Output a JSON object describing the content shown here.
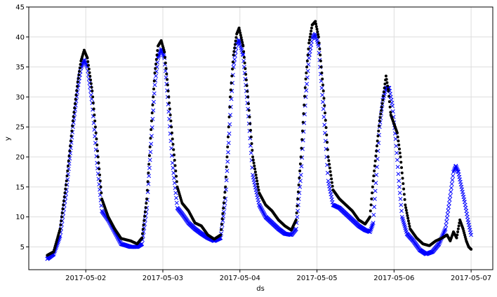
{
  "chart_data": {
    "type": "scatter",
    "xlabel": "ds",
    "ylabel": "y",
    "x_ticks": [
      "2017-05-02",
      "2017-05-03",
      "2017-05-04",
      "2017-05-05",
      "2017-05-06",
      "2017-05-07"
    ],
    "y_ticks": [
      5,
      10,
      15,
      20,
      25,
      30,
      35,
      40,
      45
    ],
    "xlim": [
      "2017-05-01T06:15",
      "2017-05-07T06:45"
    ],
    "ylim": [
      1.2,
      45
    ],
    "grid": true,
    "colors": {
      "actual": "#000000",
      "forecast": "#0000ff"
    },
    "series": [
      {
        "marker": "dot",
        "color": "#000000",
        "points": [
          [
            "2017-05-01T12:00",
            3.6
          ],
          [
            "2017-05-01T14:00",
            4.2
          ],
          [
            "2017-05-01T16:00",
            8.0
          ],
          [
            "2017-05-01T18:00",
            16.0
          ],
          [
            "2017-05-01T20:00",
            26.0
          ],
          [
            "2017-05-01T21:30",
            32.5
          ],
          [
            "2017-05-01T22:30",
            36.0
          ],
          [
            "2017-05-01T23:30",
            37.8
          ],
          [
            "2017-05-02T00:30",
            36.5
          ],
          [
            "2017-05-02T02:00",
            31.0
          ],
          [
            "2017-05-02T03:30",
            22.0
          ],
          [
            "2017-05-02T05:00",
            13.0
          ],
          [
            "2017-05-02T07:00",
            10.0
          ],
          [
            "2017-05-02T09:00",
            8.0
          ],
          [
            "2017-05-02T11:00",
            6.4
          ],
          [
            "2017-05-02T14:00",
            6.0
          ],
          [
            "2017-05-02T16:00",
            5.5
          ],
          [
            "2017-05-02T17:30",
            6.5
          ],
          [
            "2017-05-02T19:00",
            13.0
          ],
          [
            "2017-05-02T20:30",
            26.0
          ],
          [
            "2017-05-02T21:30",
            34.0
          ],
          [
            "2017-05-02T22:30",
            38.5
          ],
          [
            "2017-05-02T23:30",
            39.4
          ],
          [
            "2017-05-03T00:30",
            37.5
          ],
          [
            "2017-05-03T01:30",
            32.0
          ],
          [
            "2017-05-03T03:00",
            23.0
          ],
          [
            "2017-05-03T04:30",
            15.0
          ],
          [
            "2017-05-03T06:00",
            12.3
          ],
          [
            "2017-05-03T08:00",
            11.0
          ],
          [
            "2017-05-03T10:00",
            9.0
          ],
          [
            "2017-05-03T12:00",
            8.5
          ],
          [
            "2017-05-03T14:00",
            7.0
          ],
          [
            "2017-05-03T16:00",
            6.3
          ],
          [
            "2017-05-03T18:00",
            7.0
          ],
          [
            "2017-05-03T19:30",
            15.0
          ],
          [
            "2017-05-03T21:00",
            30.0
          ],
          [
            "2017-05-03T22:00",
            37.0
          ],
          [
            "2017-05-03T23:00",
            40.5
          ],
          [
            "2017-05-03T23:45",
            41.5
          ],
          [
            "2017-05-04T01:00",
            38.5
          ],
          [
            "2017-05-04T02:30",
            30.0
          ],
          [
            "2017-05-04T04:00",
            20.0
          ],
          [
            "2017-05-04T06:00",
            14.0
          ],
          [
            "2017-05-04T08:00",
            12.0
          ],
          [
            "2017-05-04T10:00",
            11.0
          ],
          [
            "2017-05-04T12:00",
            9.5
          ],
          [
            "2017-05-04T14:00",
            8.5
          ],
          [
            "2017-05-04T16:00",
            7.8
          ],
          [
            "2017-05-04T17:30",
            9.5
          ],
          [
            "2017-05-04T19:00",
            20.0
          ],
          [
            "2017-05-04T20:30",
            33.0
          ],
          [
            "2017-05-04T21:30",
            39.0
          ],
          [
            "2017-05-04T22:30",
            42.0
          ],
          [
            "2017-05-04T23:30",
            42.6
          ],
          [
            "2017-05-05T00:30",
            40.0
          ],
          [
            "2017-05-05T02:00",
            31.0
          ],
          [
            "2017-05-05T03:30",
            20.0
          ],
          [
            "2017-05-05T05:00",
            14.5
          ],
          [
            "2017-05-05T07:00",
            13.0
          ],
          [
            "2017-05-05T09:00",
            12.0
          ],
          [
            "2017-05-05T11:00",
            11.0
          ],
          [
            "2017-05-05T13:00",
            9.5
          ],
          [
            "2017-05-05T15:00",
            8.8
          ],
          [
            "2017-05-05T16:30",
            10.0
          ],
          [
            "2017-05-05T17:30",
            16.0
          ],
          [
            "2017-05-05T18:30",
            21.0
          ],
          [
            "2017-05-05T19:30",
            26.0
          ],
          [
            "2017-05-05T20:30",
            29.5
          ],
          [
            "2017-05-05T21:30",
            33.5
          ],
          [
            "2017-05-05T22:15",
            31.0
          ],
          [
            "2017-05-05T23:00",
            27.0
          ],
          [
            "2017-05-06T00:00",
            25.5
          ],
          [
            "2017-05-06T01:00",
            24.0
          ],
          [
            "2017-05-06T02:00",
            20.0
          ],
          [
            "2017-05-06T03:30",
            12.0
          ],
          [
            "2017-05-06T05:00",
            8.0
          ],
          [
            "2017-05-06T07:00",
            6.5
          ],
          [
            "2017-05-06T09:00",
            5.5
          ],
          [
            "2017-05-06T11:00",
            5.2
          ],
          [
            "2017-05-06T13:00",
            6.0
          ],
          [
            "2017-05-06T15:00",
            6.5
          ],
          [
            "2017-05-06T16:30",
            7.0
          ],
          [
            "2017-05-06T17:30",
            6.0
          ],
          [
            "2017-05-06T18:30",
            7.5
          ],
          [
            "2017-05-06T19:30",
            6.5
          ],
          [
            "2017-05-06T20:30",
            9.5
          ],
          [
            "2017-05-06T21:30",
            8.0
          ],
          [
            "2017-05-06T22:30",
            6.0
          ],
          [
            "2017-05-06T23:15",
            5.0
          ],
          [
            "2017-05-07T00:00",
            4.6
          ]
        ]
      },
      {
        "marker": "x",
        "color": "#0000ff",
        "points": [
          [
            "2017-05-01T12:00",
            3.0
          ],
          [
            "2017-05-01T14:00",
            3.8
          ],
          [
            "2017-05-01T16:00",
            6.8
          ],
          [
            "2017-05-01T18:00",
            14.5
          ],
          [
            "2017-05-01T20:00",
            25.0
          ],
          [
            "2017-05-01T21:30",
            31.5
          ],
          [
            "2017-05-01T22:30",
            34.8
          ],
          [
            "2017-05-01T23:30",
            36.2
          ],
          [
            "2017-05-02T00:30",
            35.0
          ],
          [
            "2017-05-02T02:00",
            29.0
          ],
          [
            "2017-05-02T03:30",
            19.0
          ],
          [
            "2017-05-02T05:00",
            11.0
          ],
          [
            "2017-05-02T07:00",
            9.5
          ],
          [
            "2017-05-02T09:00",
            7.5
          ],
          [
            "2017-05-02T11:00",
            5.5
          ],
          [
            "2017-05-02T14:00",
            5.0
          ],
          [
            "2017-05-02T16:00",
            5.0
          ],
          [
            "2017-05-02T17:30",
            5.5
          ],
          [
            "2017-05-02T19:00",
            11.5
          ],
          [
            "2017-05-02T20:30",
            23.5
          ],
          [
            "2017-05-02T21:30",
            32.0
          ],
          [
            "2017-05-02T22:30",
            36.5
          ],
          [
            "2017-05-02T23:30",
            38.0
          ],
          [
            "2017-05-03T00:30",
            36.5
          ],
          [
            "2017-05-03T01:30",
            30.0
          ],
          [
            "2017-05-03T03:00",
            19.0
          ],
          [
            "2017-05-03T04:30",
            11.5
          ],
          [
            "2017-05-03T06:00",
            10.5
          ],
          [
            "2017-05-03T08:00",
            9.0
          ],
          [
            "2017-05-03T10:00",
            8.0
          ],
          [
            "2017-05-03T12:00",
            7.2
          ],
          [
            "2017-05-03T14:00",
            6.5
          ],
          [
            "2017-05-03T16:00",
            6.0
          ],
          [
            "2017-05-03T18:00",
            6.5
          ],
          [
            "2017-05-03T19:30",
            13.0
          ],
          [
            "2017-05-03T21:00",
            27.0
          ],
          [
            "2017-05-03T22:00",
            35.0
          ],
          [
            "2017-05-03T23:00",
            38.8
          ],
          [
            "2017-05-03T23:45",
            39.5
          ],
          [
            "2017-05-04T01:00",
            37.0
          ],
          [
            "2017-05-04T02:30",
            28.0
          ],
          [
            "2017-05-04T04:00",
            17.0
          ],
          [
            "2017-05-04T06:00",
            12.0
          ],
          [
            "2017-05-04T08:00",
            10.0
          ],
          [
            "2017-05-04T10:00",
            9.0
          ],
          [
            "2017-05-04T12:00",
            8.0
          ],
          [
            "2017-05-04T14:00",
            7.2
          ],
          [
            "2017-05-04T16:00",
            7.0
          ],
          [
            "2017-05-04T17:30",
            8.0
          ],
          [
            "2017-05-04T19:00",
            17.0
          ],
          [
            "2017-05-04T20:30",
            30.0
          ],
          [
            "2017-05-04T21:30",
            36.5
          ],
          [
            "2017-05-04T22:30",
            39.8
          ],
          [
            "2017-05-04T23:30",
            40.5
          ],
          [
            "2017-05-05T00:30",
            38.5
          ],
          [
            "2017-05-05T02:00",
            28.0
          ],
          [
            "2017-05-05T03:30",
            16.0
          ],
          [
            "2017-05-05T05:00",
            12.0
          ],
          [
            "2017-05-05T07:00",
            11.5
          ],
          [
            "2017-05-05T09:00",
            10.5
          ],
          [
            "2017-05-05T11:00",
            9.5
          ],
          [
            "2017-05-05T13:00",
            8.5
          ],
          [
            "2017-05-05T15:00",
            7.8
          ],
          [
            "2017-05-05T16:30",
            7.5
          ],
          [
            "2017-05-05T17:30",
            9.0
          ],
          [
            "2017-05-05T18:30",
            17.0
          ],
          [
            "2017-05-05T19:30",
            25.0
          ],
          [
            "2017-05-05T20:30",
            29.5
          ],
          [
            "2017-05-05T21:30",
            31.5
          ],
          [
            "2017-05-05T22:30",
            31.5
          ],
          [
            "2017-05-05T23:30",
            28.5
          ],
          [
            "2017-05-06T00:30",
            23.0
          ],
          [
            "2017-05-06T01:30",
            16.0
          ],
          [
            "2017-05-06T02:30",
            10.0
          ],
          [
            "2017-05-06T04:00",
            7.2
          ],
          [
            "2017-05-06T06:00",
            6.0
          ],
          [
            "2017-05-06T08:00",
            4.5
          ],
          [
            "2017-05-06T10:00",
            3.8
          ],
          [
            "2017-05-06T12:00",
            4.2
          ],
          [
            "2017-05-06T14:00",
            5.5
          ],
          [
            "2017-05-06T16:00",
            8.0
          ],
          [
            "2017-05-06T17:30",
            13.5
          ],
          [
            "2017-05-06T18:30",
            17.5
          ],
          [
            "2017-05-06T19:15",
            18.5
          ],
          [
            "2017-05-06T20:00",
            17.5
          ],
          [
            "2017-05-06T21:00",
            15.0
          ],
          [
            "2017-05-06T22:00",
            12.5
          ],
          [
            "2017-05-06T23:00",
            9.5
          ],
          [
            "2017-05-07T00:00",
            7.0
          ]
        ]
      }
    ]
  }
}
